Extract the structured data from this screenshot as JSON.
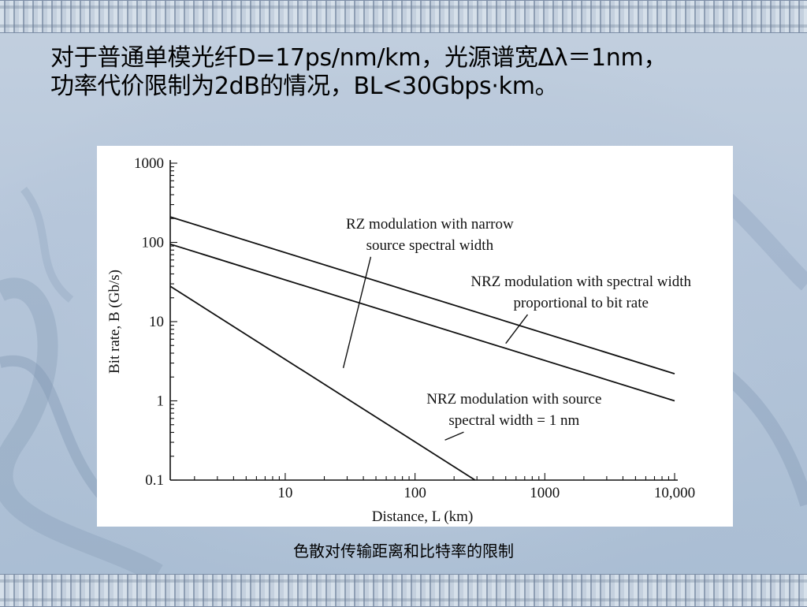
{
  "slide": {
    "heading_line1": "对于普通单模光纤D=17ps/nm/km，光源谱宽Δλ＝1nm，",
    "heading_line2": "功率代价限制为2dB的情况，BL<30Gbps·km。",
    "caption": "色散对传输距离和比特率的限制"
  },
  "chart_data": {
    "type": "line",
    "xscale": "log",
    "yscale": "log",
    "xlabel": "Distance, L (km)",
    "ylabel": "Bit rate, B  (Gb/s)",
    "xlim": [
      1.3,
      10000
    ],
    "ylim": [
      0.1,
      1000
    ],
    "x_ticks": [
      {
        "value": 10,
        "label": "10"
      },
      {
        "value": 100,
        "label": "100"
      },
      {
        "value": 1000,
        "label": "1000"
      },
      {
        "value": 10000,
        "label": "10,000"
      }
    ],
    "y_ticks": [
      {
        "value": 0.1,
        "label": "0.1"
      },
      {
        "value": 1,
        "label": "1"
      },
      {
        "value": 10,
        "label": "10"
      },
      {
        "value": 100,
        "label": "100"
      },
      {
        "value": 1000,
        "label": "1000"
      }
    ],
    "grid": false,
    "series": [
      {
        "x": [
          1.3,
          10000
        ],
        "y": [
          210,
          2.2
        ]
      },
      {
        "x": [
          1.3,
          10000
        ],
        "y": [
          95,
          1.0
        ]
      },
      {
        "x": [
          1.3,
          290
        ],
        "y": [
          28,
          0.1
        ]
      }
    ],
    "annotations": [
      {
        "line1": "RZ modulation with narrow",
        "line2": "source spectral width",
        "series": 0,
        "x": 28,
        "y": 2.6,
        "text_x": 130,
        "text_y": 150
      },
      {
        "line1": "NRZ modulation with spectral width",
        "line2": "proportional to bit rate",
        "series": 1,
        "x": 500,
        "y": 5.3,
        "text_x": 1900,
        "text_y": 28
      },
      {
        "line1": "NRZ modulation with source",
        "line2": "spectral width = 1 nm",
        "series": 2,
        "x": 170,
        "y": 0.32,
        "text_x": 580,
        "text_y": 0.92
      }
    ]
  }
}
